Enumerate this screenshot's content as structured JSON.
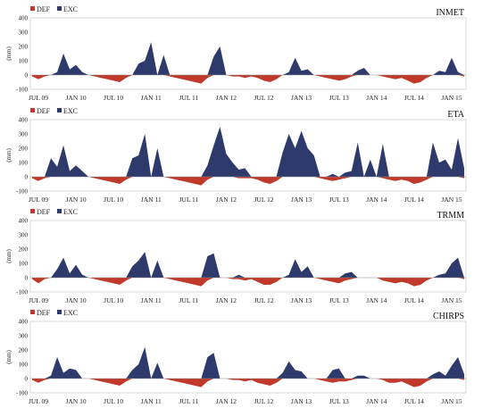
{
  "chart_data": [
    {
      "type": "area",
      "title": "INMET",
      "ylabel": "(mm)",
      "ylim": [
        -100,
        400
      ],
      "yticks": [
        -100,
        0,
        100,
        200,
        300,
        400
      ],
      "x_tick_labels": [
        "JUL 09",
        "JAN 10",
        "JUL 10",
        "JAN 11",
        "JUL 11",
        "JAN 12",
        "JUL 12",
        "JAN 13",
        "JUL 13",
        "JAN 14",
        "JUL 14",
        "JAN 15"
      ],
      "months": [
        "2009-06",
        "2009-07",
        "2009-08",
        "2009-09",
        "2009-10",
        "2009-11",
        "2009-12",
        "2010-01",
        "2010-02",
        "2010-03",
        "2010-04",
        "2010-05",
        "2010-06",
        "2010-07",
        "2010-08",
        "2010-09",
        "2010-10",
        "2010-11",
        "2010-12",
        "2011-01",
        "2011-02",
        "2011-03",
        "2011-04",
        "2011-05",
        "2011-06",
        "2011-07",
        "2011-08",
        "2011-09",
        "2011-10",
        "2011-11",
        "2011-12",
        "2012-01",
        "2012-02",
        "2012-03",
        "2012-04",
        "2012-05",
        "2012-06",
        "2012-07",
        "2012-08",
        "2012-09",
        "2012-10",
        "2012-11",
        "2012-12",
        "2013-01",
        "2013-02",
        "2013-03",
        "2013-04",
        "2013-05",
        "2013-06",
        "2013-07",
        "2013-08",
        "2013-09",
        "2013-10",
        "2013-11",
        "2013-12",
        "2014-01",
        "2014-02",
        "2014-03",
        "2014-04",
        "2014-05",
        "2014-06",
        "2014-07",
        "2014-08",
        "2014-09",
        "2014-10",
        "2014-11",
        "2014-12",
        "2015-01",
        "2015-02",
        "2015-03"
      ],
      "series": [
        {
          "name": "DEF",
          "color": "#c0392b",
          "values": [
            -10,
            -30,
            -10,
            0,
            0,
            0,
            0,
            0,
            0,
            0,
            -10,
            -20,
            -30,
            -40,
            -50,
            -20,
            0,
            0,
            0,
            0,
            0,
            0,
            -10,
            -20,
            -30,
            -40,
            -50,
            -60,
            -20,
            0,
            0,
            0,
            -10,
            -10,
            -20,
            -10,
            -20,
            -40,
            -50,
            -30,
            0,
            0,
            0,
            0,
            0,
            0,
            -10,
            -20,
            -30,
            -40,
            -30,
            -10,
            0,
            0,
            0,
            0,
            -10,
            -20,
            -30,
            -20,
            -40,
            -60,
            -50,
            -20,
            0,
            0,
            0,
            0,
            0,
            -10
          ]
        },
        {
          "name": "EXC",
          "color": "#2e3a6b",
          "values": [
            0,
            0,
            0,
            0,
            20,
            150,
            40,
            70,
            20,
            0,
            0,
            0,
            0,
            0,
            0,
            0,
            0,
            80,
            100,
            230,
            0,
            140,
            0,
            0,
            0,
            0,
            0,
            0,
            0,
            130,
            200,
            0,
            0,
            0,
            0,
            0,
            0,
            0,
            0,
            0,
            0,
            20,
            120,
            30,
            40,
            0,
            0,
            0,
            0,
            0,
            0,
            0,
            30,
            50,
            0,
            0,
            0,
            0,
            0,
            0,
            0,
            0,
            0,
            0,
            0,
            30,
            20,
            120,
            20,
            0
          ]
        }
      ]
    },
    {
      "type": "area",
      "title": "ETA",
      "ylabel": "(mm)",
      "ylim": [
        -100,
        400
      ],
      "yticks": [
        -100,
        0,
        100,
        200,
        300,
        400
      ],
      "x_tick_labels": [
        "JUL 09",
        "JAN 10",
        "JUL 10",
        "JAN 11",
        "JUL 11",
        "JAN 12",
        "JUL 12",
        "JAN 13",
        "JUL 13",
        "JAN 14",
        "JUL 14",
        "JAN 15"
      ],
      "series": [
        {
          "name": "DEF",
          "color": "#c0392b",
          "values": [
            -10,
            -30,
            -10,
            0,
            0,
            0,
            0,
            0,
            0,
            0,
            -10,
            -20,
            -30,
            -40,
            -50,
            -20,
            0,
            0,
            0,
            0,
            0,
            0,
            -10,
            -20,
            -30,
            -40,
            -50,
            -60,
            -20,
            0,
            0,
            0,
            0,
            -10,
            -10,
            -10,
            -20,
            -40,
            -50,
            -30,
            0,
            0,
            0,
            0,
            0,
            0,
            -10,
            -20,
            -30,
            -20,
            -10,
            0,
            0,
            0,
            0,
            0,
            -10,
            -20,
            -30,
            -20,
            -30,
            -50,
            -40,
            -20,
            0,
            0,
            0,
            0,
            0,
            -10
          ]
        },
        {
          "name": "EXC",
          "color": "#2e3a6b",
          "values": [
            0,
            0,
            0,
            130,
            70,
            220,
            40,
            80,
            40,
            0,
            0,
            0,
            0,
            0,
            0,
            0,
            130,
            150,
            300,
            0,
            200,
            0,
            0,
            0,
            0,
            0,
            0,
            0,
            80,
            220,
            350,
            160,
            100,
            50,
            60,
            0,
            0,
            0,
            0,
            0,
            170,
            300,
            200,
            320,
            200,
            150,
            0,
            0,
            20,
            0,
            30,
            40,
            240,
            0,
            120,
            0,
            230,
            0,
            0,
            0,
            0,
            0,
            0,
            0,
            240,
            100,
            120,
            50,
            270,
            60
          ]
        }
      ]
    },
    {
      "type": "area",
      "title": "TRMM",
      "ylabel": "(mm)",
      "ylim": [
        -100,
        400
      ],
      "yticks": [
        -100,
        0,
        100,
        200,
        300,
        400
      ],
      "x_tick_labels": [
        "JUL 09",
        "JAN 10",
        "JUL 10",
        "JAN 11",
        "JUL 11",
        "JAN 12",
        "JUL 12",
        "JAN 13",
        "JUL 13",
        "JAN 14",
        "JUL 14",
        "JAN 15"
      ],
      "series": [
        {
          "name": "DEF",
          "color": "#c0392b",
          "values": [
            -10,
            -40,
            -10,
            0,
            0,
            0,
            0,
            0,
            0,
            0,
            -10,
            -20,
            -30,
            -40,
            -50,
            -20,
            0,
            0,
            0,
            0,
            0,
            0,
            -10,
            -20,
            -30,
            -40,
            -50,
            -60,
            -20,
            0,
            0,
            0,
            -10,
            -10,
            -20,
            -10,
            -30,
            -50,
            -50,
            -30,
            0,
            0,
            0,
            0,
            0,
            0,
            -10,
            -20,
            -30,
            -40,
            -20,
            -10,
            0,
            0,
            0,
            0,
            -20,
            -30,
            -40,
            -30,
            -40,
            -60,
            -50,
            -20,
            0,
            0,
            0,
            0,
            0,
            -10
          ]
        },
        {
          "name": "EXC",
          "color": "#2e3a6b",
          "values": [
            0,
            0,
            0,
            0,
            60,
            140,
            30,
            90,
            20,
            0,
            0,
            0,
            0,
            0,
            0,
            0,
            80,
            120,
            180,
            0,
            120,
            0,
            0,
            0,
            0,
            0,
            0,
            0,
            150,
            170,
            0,
            0,
            0,
            20,
            0,
            0,
            0,
            0,
            0,
            0,
            0,
            20,
            130,
            40,
            80,
            0,
            0,
            0,
            0,
            0,
            30,
            40,
            0,
            0,
            0,
            0,
            0,
            0,
            0,
            0,
            0,
            0,
            0,
            0,
            0,
            20,
            30,
            100,
            140,
            0
          ]
        }
      ]
    },
    {
      "type": "area",
      "title": "CHIRPS",
      "ylabel": "(mm)",
      "ylim": [
        -100,
        400
      ],
      "yticks": [
        -100,
        0,
        100,
        200,
        300,
        400
      ],
      "x_tick_labels": [
        "JUL 09",
        "JAN 10",
        "JUL 10",
        "JAN 11",
        "JUL 11",
        "JAN 12",
        "JUL 12",
        "JAN 13",
        "JUL 13",
        "JAN 14",
        "JUL 14",
        "JAN 15"
      ],
      "series": [
        {
          "name": "DEF",
          "color": "#c0392b",
          "values": [
            -10,
            -30,
            -10,
            0,
            0,
            0,
            0,
            0,
            0,
            0,
            -10,
            -20,
            -30,
            -40,
            -50,
            -20,
            0,
            0,
            0,
            0,
            0,
            0,
            -10,
            -20,
            -30,
            -40,
            -50,
            -60,
            -20,
            0,
            0,
            0,
            -10,
            -10,
            -20,
            -10,
            -30,
            -40,
            -50,
            -30,
            0,
            0,
            0,
            0,
            0,
            0,
            -10,
            -20,
            -30,
            -20,
            -20,
            -10,
            0,
            0,
            0,
            0,
            -10,
            -30,
            -30,
            -20,
            -40,
            -60,
            -50,
            -20,
            0,
            0,
            0,
            0,
            0,
            -10
          ]
        },
        {
          "name": "EXC",
          "color": "#2e3a6b",
          "values": [
            0,
            0,
            0,
            20,
            150,
            40,
            70,
            60,
            0,
            0,
            0,
            0,
            0,
            0,
            0,
            0,
            60,
            100,
            220,
            0,
            110,
            0,
            0,
            0,
            0,
            0,
            0,
            0,
            150,
            180,
            0,
            0,
            0,
            0,
            0,
            0,
            0,
            0,
            0,
            0,
            40,
            120,
            60,
            50,
            0,
            0,
            0,
            0,
            60,
            70,
            0,
            0,
            20,
            20,
            0,
            0,
            0,
            0,
            0,
            0,
            0,
            0,
            0,
            0,
            30,
            50,
            20,
            90,
            150,
            30
          ]
        }
      ]
    }
  ]
}
